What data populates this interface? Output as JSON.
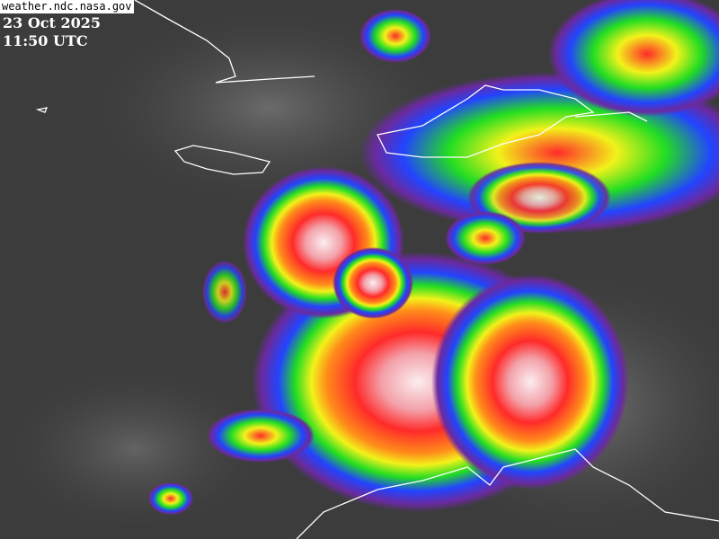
{
  "source_label": "weather.ndc.nasa.gov",
  "date": "23 Oct 2025",
  "time": "11:50 UTC",
  "colors": {
    "background": "#3c3c3c",
    "coastline": "#ffffff",
    "cold_top_core": "#f5e6ea",
    "red": "#ff2a2a",
    "orange": "#ff8c1a",
    "yellow": "#f2f21a",
    "green": "#22dd22",
    "blue": "#2244ff",
    "purple": "#6a2aa0"
  }
}
